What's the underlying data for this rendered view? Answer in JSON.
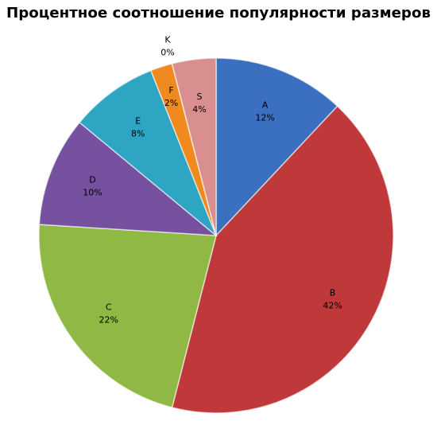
{
  "chart_data": {
    "type": "pie",
    "title": "Процентное соотношение популярности размеров",
    "categories": [
      "A",
      "B",
      "C",
      "D",
      "E",
      "F",
      "K",
      "S"
    ],
    "values": [
      12,
      42,
      22,
      10,
      8,
      2,
      0,
      4
    ],
    "value_labels": [
      "12%",
      "42%",
      "22%",
      "10%",
      "8%",
      "2%",
      "0%",
      "4%"
    ],
    "colors": [
      "#3b6fc0",
      "#c0393a",
      "#8fb845",
      "#7651a0",
      "#2fa5c4",
      "#f18a1e",
      "#9bb0d8",
      "#d98f8f"
    ]
  }
}
